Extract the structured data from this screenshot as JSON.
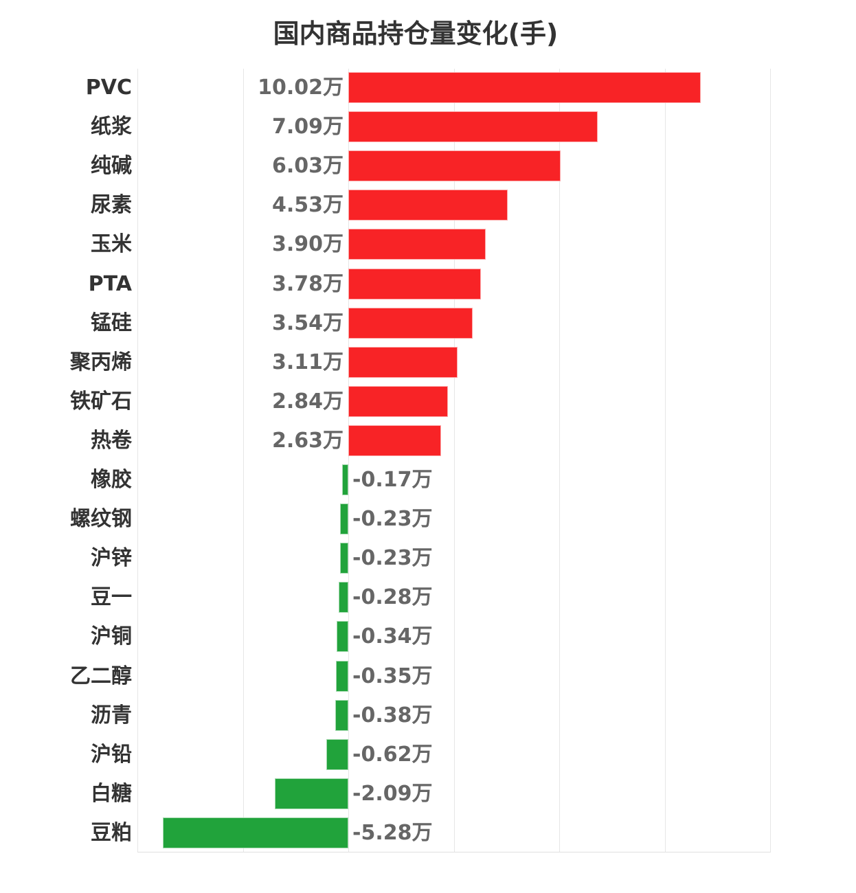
{
  "title": "国内商品持仓量变化(手)",
  "colors": {
    "positive": "#f82326",
    "negative": "#21a33b",
    "grid": "#e6e6e6",
    "label": "#333333",
    "value": "#666666"
  },
  "chart_data": {
    "type": "bar",
    "orientation": "horizontal",
    "title": "国内商品持仓量变化(手)",
    "xlabel": "",
    "ylabel": "",
    "unit": "万",
    "xlim": [
      -6,
      12
    ],
    "grid_step": 3,
    "grid": true,
    "legend": false,
    "categories": [
      "PVC",
      "纸浆",
      "纯碱",
      "尿素",
      "玉米",
      "PTA",
      "锰硅",
      "聚丙烯",
      "铁矿石",
      "热卷",
      "橡胶",
      "螺纹钢",
      "沪锌",
      "豆一",
      "沪铜",
      "乙二醇",
      "沥青",
      "沪铅",
      "白糖",
      "豆粕"
    ],
    "values": [
      10.02,
      7.09,
      6.03,
      4.53,
      3.9,
      3.78,
      3.54,
      3.11,
      2.84,
      2.63,
      -0.17,
      -0.23,
      -0.23,
      -0.28,
      -0.34,
      -0.35,
      -0.38,
      -0.62,
      -2.09,
      -5.28
    ],
    "value_labels": [
      "10.02万",
      "7.09万",
      "6.03万",
      "4.53万",
      "3.90万",
      "3.78万",
      "3.54万",
      "3.11万",
      "2.84万",
      "2.63万",
      "-0.17万",
      "-0.23万",
      "-0.23万",
      "-0.28万",
      "-0.34万",
      "-0.35万",
      "-0.38万",
      "-0.62万",
      "-2.09万",
      "-5.28万"
    ]
  }
}
